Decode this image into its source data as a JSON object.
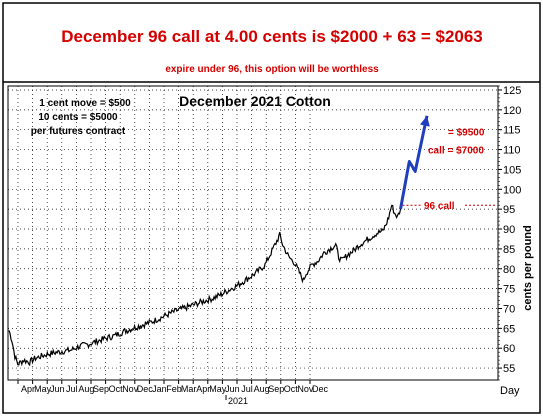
{
  "header": {
    "headline": "December 96  call at 4.00 cents is $2000 + 63 = $2063",
    "subline": "expire under 96, this option will be worthless"
  },
  "notes": [
    "1 cent move = $500",
    "10 cents = $5000",
    "per futures contract"
  ],
  "chart_data": {
    "type": "line",
    "title": "December 2021 Cotton",
    "ylabel": "cents per pound",
    "xlabel": "Day",
    "ylim": [
      52,
      126
    ],
    "y_ticks": [
      55,
      60,
      65,
      70,
      75,
      80,
      85,
      90,
      95,
      100,
      105,
      110,
      115,
      120,
      125
    ],
    "x_tick_labels": [
      "Apr",
      "May",
      "Jun",
      "Jul",
      "Aug",
      "Sep",
      "Oct",
      "Nov",
      "Dec",
      "Jan",
      "Feb",
      "Mar",
      "Apr",
      "May",
      "Jun",
      "Jul",
      "Aug",
      "Sep",
      "Oct",
      "Nov",
      "Dec"
    ],
    "year_label": "2021",
    "grid": true,
    "series": [
      {
        "values": [
          [
            0,
            64.5
          ],
          [
            1,
            62
          ],
          [
            2,
            58
          ],
          [
            3,
            56
          ],
          [
            5,
            57
          ],
          [
            7,
            56.5
          ],
          [
            9,
            57.5
          ],
          [
            11,
            58
          ],
          [
            13,
            58.5
          ],
          [
            15,
            58.8
          ],
          [
            18,
            59.2
          ],
          [
            21,
            59.5
          ],
          [
            24,
            60.5
          ],
          [
            27,
            61
          ],
          [
            30,
            61.8
          ],
          [
            33,
            62.5
          ],
          [
            36,
            63.2
          ],
          [
            39,
            64.2
          ],
          [
            42,
            65
          ],
          [
            45,
            65.8
          ],
          [
            48,
            66.5
          ],
          [
            51,
            67.5
          ],
          [
            54,
            68.5
          ],
          [
            57,
            69.5
          ],
          [
            60,
            70.2
          ],
          [
            63,
            71
          ],
          [
            66,
            71.8
          ],
          [
            69,
            72.5
          ],
          [
            72,
            73.5
          ],
          [
            75,
            74.8
          ],
          [
            78,
            76
          ],
          [
            81,
            77.5
          ],
          [
            84,
            79
          ],
          [
            87,
            81
          ],
          [
            89,
            84
          ],
          [
            91,
            87
          ],
          [
            92,
            88.5
          ],
          [
            93,
            86
          ],
          [
            95,
            83
          ],
          [
            97,
            81.5
          ],
          [
            98,
            80
          ],
          [
            99,
            78.5
          ],
          [
            100,
            77
          ],
          [
            101,
            79
          ],
          [
            103,
            81
          ],
          [
            105,
            82
          ],
          [
            107,
            84
          ],
          [
            109,
            85
          ],
          [
            111,
            86
          ],
          [
            112,
            83
          ],
          [
            113,
            82
          ],
          [
            115,
            83.5
          ],
          [
            117,
            84.5
          ],
          [
            119,
            86
          ],
          [
            121,
            87
          ],
          [
            123,
            88
          ],
          [
            125,
            89
          ],
          [
            127,
            89.5
          ],
          [
            128,
            91
          ],
          [
            129,
            93
          ],
          [
            130,
            96
          ],
          [
            131,
            94
          ],
          [
            132,
            93
          ],
          [
            133,
            95
          ]
        ]
      }
    ],
    "projection": {
      "color": "#1f3fbf",
      "values": [
        [
          133,
          95
        ],
        [
          136,
          107
        ],
        [
          138,
          104.5
        ],
        [
          142,
          118.5
        ]
      ]
    },
    "annotations": [
      {
        "text": "96 call",
        "y": 96,
        "color": "#d40000"
      },
      {
        "text": "call = $7000",
        "y": 110,
        "color": "#d40000"
      },
      {
        "text": "= $9500",
        "y": 114.5,
        "color": "#d40000"
      }
    ],
    "accent_color": "#d40000"
  }
}
